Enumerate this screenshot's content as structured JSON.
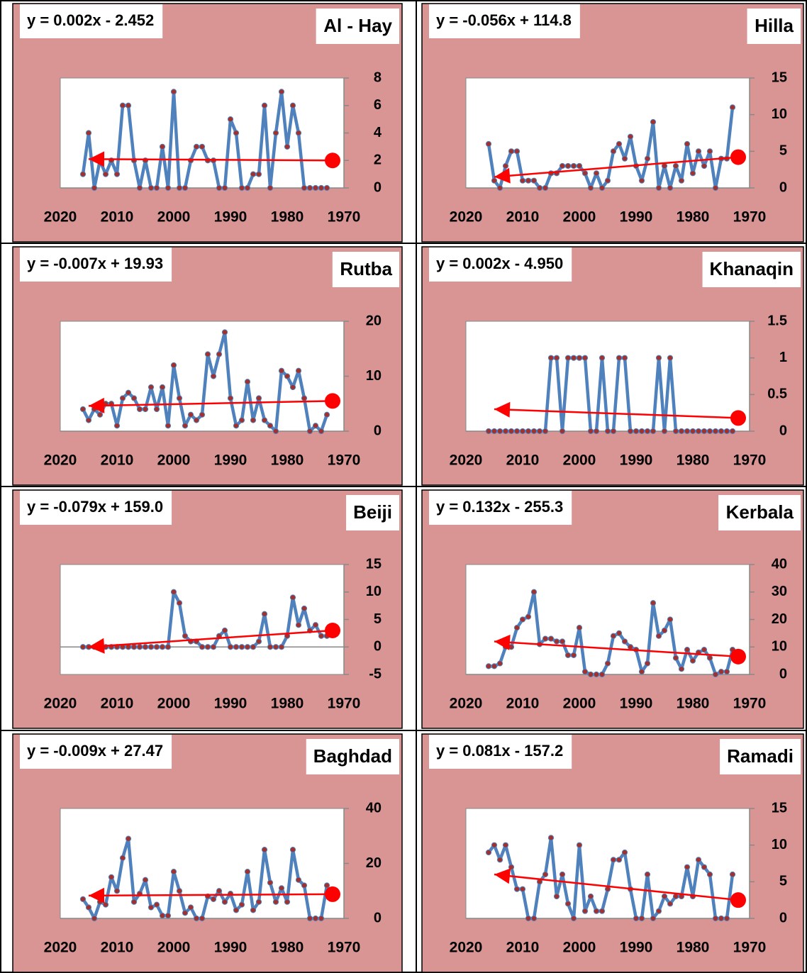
{
  "chart_data": [
    {
      "type": "line",
      "title": "Al - Hay",
      "annotation": "y = 0.002x - 2.452",
      "color": "#4f81bd",
      "marker_color": "#a0312f",
      "x": [
        2016,
        2015,
        2014,
        2013,
        2012,
        2011,
        2010,
        2009,
        2008,
        2007,
        2006,
        2005,
        2004,
        2003,
        2002,
        2001,
        2000,
        1999,
        1998,
        1997,
        1996,
        1995,
        1994,
        1993,
        1992,
        1991,
        1990,
        1989,
        1988,
        1987,
        1986,
        1985,
        1984,
        1983,
        1982,
        1981,
        1980,
        1979,
        1978,
        1977,
        1976,
        1975,
        1974,
        1973
      ],
      "values": [
        1,
        4,
        0,
        2,
        1,
        2,
        1,
        6,
        6,
        2,
        0,
        2,
        0,
        0,
        3,
        0,
        7,
        0,
        0,
        2,
        3,
        3,
        2,
        2,
        0,
        0,
        5,
        4,
        0,
        0,
        1,
        1,
        6,
        0,
        4,
        7,
        3,
        6,
        4,
        0,
        0,
        0,
        0,
        0
      ],
      "trend_x": [
        2015,
        1972
      ],
      "trend_y": [
        2.1,
        2.0
      ],
      "trend_color": "#ff0000",
      "xlim": [
        2020,
        1970
      ],
      "xticks": [
        2020,
        2010,
        2000,
        1990,
        1980,
        1970
      ],
      "ylim": [
        0,
        8
      ],
      "yticks": [
        0,
        2,
        4,
        6,
        8
      ]
    },
    {
      "type": "line",
      "title": "Hilla",
      "annotation": "y = -0.056x + 114.8",
      "color": "#4f81bd",
      "marker_color": "#a0312f",
      "x": [
        2016,
        2015,
        2014,
        2013,
        2012,
        2011,
        2010,
        2009,
        2008,
        2007,
        2006,
        2005,
        2004,
        2003,
        2002,
        2001,
        2000,
        1999,
        1998,
        1997,
        1996,
        1995,
        1994,
        1993,
        1992,
        1991,
        1990,
        1989,
        1988,
        1987,
        1986,
        1985,
        1984,
        1983,
        1982,
        1981,
        1980,
        1979,
        1978,
        1977,
        1976,
        1975,
        1974,
        1973
      ],
      "values": [
        6,
        1,
        0,
        3,
        5,
        5,
        1,
        1,
        1,
        0,
        0,
        2,
        2,
        3,
        3,
        3,
        3,
        2,
        0,
        2,
        0,
        1,
        5,
        6,
        4,
        7,
        3,
        1,
        4,
        9,
        0,
        3,
        0,
        3,
        1,
        6,
        2,
        5,
        3,
        5,
        0,
        4,
        4,
        11
      ],
      "trend_x": [
        2015,
        1972
      ],
      "trend_y": [
        1.5,
        4.2
      ],
      "trend_color": "#ff0000",
      "xlim": [
        2020,
        1970
      ],
      "xticks": [
        2020,
        2010,
        2000,
        1990,
        1980,
        1970
      ],
      "ylim": [
        0,
        15
      ],
      "yticks": [
        0,
        5,
        10,
        15
      ]
    },
    {
      "type": "line",
      "title": "Rutba",
      "annotation": "y = -0.007x + 19.93",
      "color": "#4f81bd",
      "marker_color": "#a0312f",
      "x": [
        2016,
        2015,
        2014,
        2013,
        2012,
        2011,
        2010,
        2009,
        2008,
        2007,
        2006,
        2005,
        2004,
        2003,
        2002,
        2001,
        2000,
        1999,
        1998,
        1997,
        1996,
        1995,
        1994,
        1993,
        1992,
        1991,
        1990,
        1989,
        1988,
        1987,
        1986,
        1985,
        1984,
        1983,
        1982,
        1981,
        1980,
        1979,
        1978,
        1977,
        1976,
        1975,
        1974,
        1973
      ],
      "values": [
        4,
        2,
        4,
        3,
        5,
        5,
        1,
        6,
        7,
        6,
        4,
        4,
        8,
        4,
        8,
        1,
        12,
        6,
        1,
        3,
        2,
        3,
        14,
        10,
        14,
        18,
        6,
        1,
        2,
        9,
        2,
        6,
        2,
        1,
        0,
        11,
        10,
        8,
        11,
        6,
        0,
        1,
        0,
        3
      ],
      "trend_x": [
        2015,
        1972
      ],
      "trend_y": [
        4.6,
        5.5
      ],
      "trend_color": "#ff0000",
      "xlim": [
        2020,
        1970
      ],
      "xticks": [
        2020,
        2010,
        2000,
        1990,
        1980,
        1970
      ],
      "ylim": [
        0,
        20
      ],
      "yticks": [
        0,
        10,
        20
      ]
    },
    {
      "type": "line",
      "title": "Khanaqin",
      "annotation": "y = 0.002x - 4.950",
      "color": "#4f81bd",
      "marker_color": "#a0312f",
      "x": [
        2016,
        2015,
        2014,
        2013,
        2012,
        2011,
        2010,
        2009,
        2008,
        2007,
        2006,
        2005,
        2004,
        2003,
        2002,
        2001,
        2000,
        1999,
        1998,
        1997,
        1996,
        1995,
        1994,
        1993,
        1992,
        1991,
        1990,
        1989,
        1988,
        1987,
        1986,
        1985,
        1984,
        1983,
        1982,
        1981,
        1980,
        1979,
        1978,
        1977,
        1976,
        1975,
        1974,
        1973
      ],
      "values": [
        0,
        0,
        0,
        0,
        0,
        0,
        0,
        0,
        0,
        0,
        0,
        1,
        1,
        0,
        1,
        1,
        1,
        1,
        0,
        0,
        1,
        0,
        0,
        1,
        1,
        0,
        0,
        0,
        0,
        0,
        1,
        0,
        1,
        0,
        0,
        0,
        0,
        0,
        0,
        0,
        0,
        0,
        0,
        0
      ],
      "trend_x": [
        2015,
        1972
      ],
      "trend_y": [
        0.3,
        0.18
      ],
      "trend_color": "#ff0000",
      "xlim": [
        2020,
        1970
      ],
      "xticks": [
        2020,
        2010,
        2000,
        1990,
        1980,
        1970
      ],
      "ylim": [
        0,
        1.5
      ],
      "yticks": [
        0,
        0.5,
        1,
        1.5
      ]
    },
    {
      "type": "line",
      "title": "Beiji",
      "annotation": "y = -0.079x + 159.0",
      "color": "#4f81bd",
      "marker_color": "#a0312f",
      "x": [
        2016,
        2015,
        2014,
        2013,
        2012,
        2011,
        2010,
        2009,
        2008,
        2007,
        2006,
        2005,
        2004,
        2003,
        2002,
        2001,
        2000,
        1999,
        1998,
        1997,
        1996,
        1995,
        1994,
        1993,
        1992,
        1991,
        1990,
        1989,
        1988,
        1987,
        1986,
        1985,
        1984,
        1983,
        1982,
        1981,
        1980,
        1979,
        1978,
        1977,
        1976,
        1975,
        1974,
        1973
      ],
      "values": [
        0,
        0,
        0,
        0,
        0,
        0,
        0,
        0,
        0,
        0,
        0,
        0,
        0,
        0,
        0,
        0,
        10,
        8,
        2,
        1,
        1,
        0,
        0,
        0,
        2,
        3,
        0,
        0,
        0,
        0,
        0,
        1,
        6,
        0,
        0,
        0,
        2,
        9,
        4,
        7,
        3,
        4,
        2,
        2
      ],
      "trend_x": [
        2015,
        1972
      ],
      "trend_y": [
        0,
        3
      ],
      "trend_color": "#ff0000",
      "xlim": [
        2020,
        1970
      ],
      "xticks": [
        2020,
        2010,
        2000,
        1990,
        1980,
        1970
      ],
      "ylim": [
        -5,
        15
      ],
      "yticks": [
        -5,
        0,
        5,
        10,
        15
      ]
    },
    {
      "type": "line",
      "title": "Kerbala",
      "annotation": "y = 0.132x - 255.3",
      "color": "#4f81bd",
      "marker_color": "#a0312f",
      "x": [
        2016,
        2015,
        2014,
        2013,
        2012,
        2011,
        2010,
        2009,
        2008,
        2007,
        2006,
        2005,
        2004,
        2003,
        2002,
        2001,
        2000,
        1999,
        1998,
        1997,
        1996,
        1995,
        1994,
        1993,
        1992,
        1991,
        1990,
        1989,
        1988,
        1987,
        1986,
        1985,
        1984,
        1983,
        1982,
        1981,
        1980,
        1979,
        1978,
        1977,
        1976,
        1975,
        1974,
        1973
      ],
      "values": [
        3,
        3,
        4,
        10,
        10,
        17,
        20,
        21,
        30,
        11,
        13,
        13,
        12,
        12,
        7,
        7,
        17,
        1,
        0,
        0,
        0,
        4,
        14,
        15,
        12,
        10,
        9,
        1,
        4,
        26,
        14,
        16,
        20,
        6,
        2,
        9,
        5,
        8,
        9,
        6,
        0,
        1,
        1,
        9
      ],
      "trend_x": [
        2015,
        1972
      ],
      "trend_y": [
        12,
        6.5
      ],
      "trend_color": "#ff0000",
      "xlim": [
        2020,
        1970
      ],
      "xticks": [
        2020,
        2010,
        2000,
        1990,
        1980,
        1970
      ],
      "ylim": [
        0,
        40
      ],
      "yticks": [
        0,
        10,
        20,
        30,
        40
      ]
    },
    {
      "type": "line",
      "title": "Baghdad",
      "annotation": "y = -0.009x + 27.47",
      "color": "#4f81bd",
      "marker_color": "#a0312f",
      "x": [
        2016,
        2015,
        2014,
        2013,
        2012,
        2011,
        2010,
        2009,
        2008,
        2007,
        2006,
        2005,
        2004,
        2003,
        2002,
        2001,
        2000,
        1999,
        1998,
        1997,
        1996,
        1995,
        1994,
        1993,
        1992,
        1991,
        1990,
        1989,
        1988,
        1987,
        1986,
        1985,
        1984,
        1983,
        1982,
        1981,
        1980,
        1979,
        1978,
        1977,
        1976,
        1975,
        1974,
        1973
      ],
      "values": [
        7,
        4,
        0,
        6,
        5,
        15,
        10,
        22,
        29,
        6,
        9,
        14,
        4,
        5,
        1,
        1,
        17,
        10,
        2,
        4,
        0,
        0,
        8,
        7,
        10,
        6,
        9,
        3,
        5,
        17,
        3,
        6,
        25,
        13,
        6,
        11,
        6,
        25,
        14,
        12,
        0,
        0,
        0,
        12
      ],
      "trend_x": [
        2015,
        1972
      ],
      "trend_y": [
        8.3,
        8.8
      ],
      "trend_color": "#ff0000",
      "xlim": [
        2020,
        1970
      ],
      "xticks": [
        2020,
        2010,
        2000,
        1990,
        1980,
        1970
      ],
      "ylim": [
        0,
        40
      ],
      "yticks": [
        0,
        20,
        40
      ]
    },
    {
      "type": "line",
      "title": "Ramadi",
      "annotation": "y = 0.081x - 157.2",
      "color": "#4f81bd",
      "marker_color": "#a0312f",
      "x": [
        2016,
        2015,
        2014,
        2013,
        2012,
        2011,
        2010,
        2009,
        2008,
        2007,
        2006,
        2005,
        2004,
        2003,
        2002,
        2001,
        2000,
        1999,
        1998,
        1997,
        1996,
        1995,
        1994,
        1993,
        1992,
        1991,
        1990,
        1989,
        1988,
        1987,
        1986,
        1985,
        1984,
        1983,
        1982,
        1981,
        1980,
        1979,
        1978,
        1977,
        1976,
        1975,
        1974,
        1973
      ],
      "values": [
        9,
        10,
        8,
        10,
        7,
        4,
        4,
        0,
        0,
        5,
        6,
        11,
        3,
        6,
        2,
        0,
        10,
        1,
        3,
        1,
        1,
        4,
        8,
        8,
        9,
        4,
        0,
        0,
        6,
        0,
        1,
        3,
        2,
        3,
        3,
        7,
        3,
        8,
        7,
        6,
        0,
        0,
        0,
        6
      ],
      "trend_x": [
        2015,
        1972
      ],
      "trend_y": [
        6,
        2.5
      ],
      "trend_color": "#ff0000",
      "xlim": [
        2020,
        1970
      ],
      "xticks": [
        2020,
        2010,
        2000,
        1990,
        1980,
        1970
      ],
      "ylim": [
        0,
        15
      ],
      "yticks": [
        0,
        5,
        10,
        15
      ]
    }
  ]
}
